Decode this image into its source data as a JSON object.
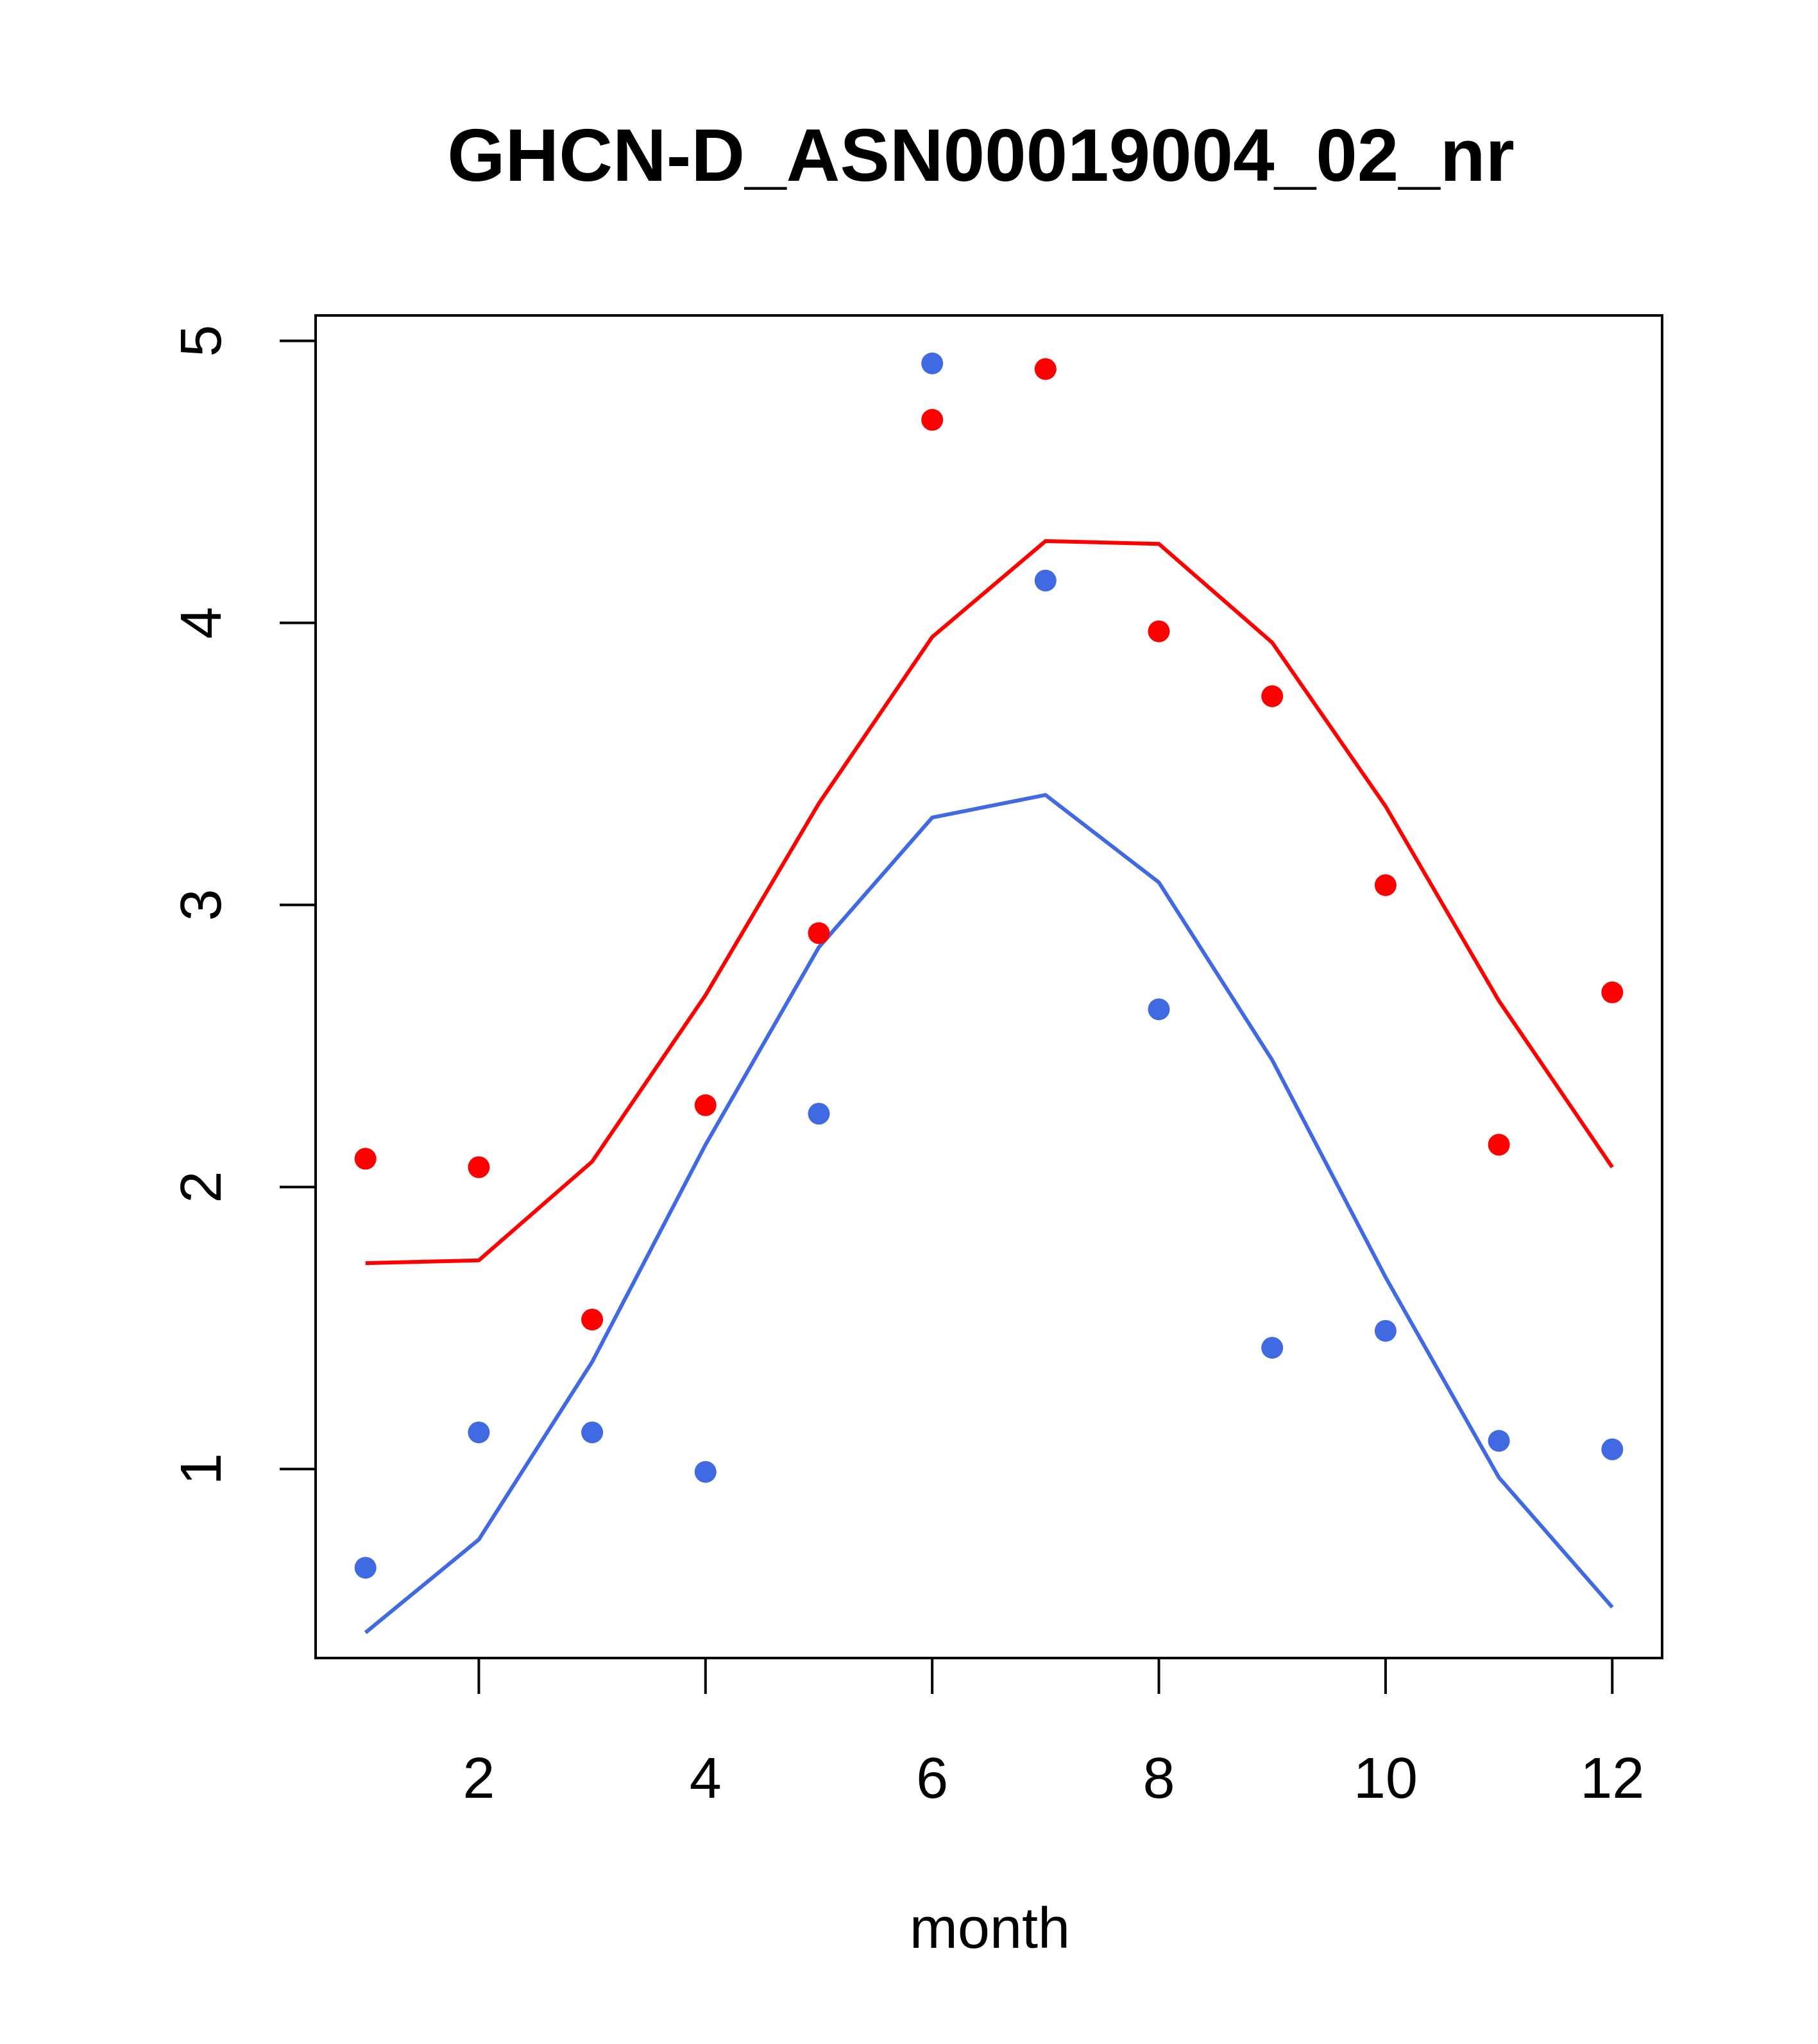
{
  "chart_data": {
    "type": "scatter",
    "title": "GHCN-D_ASN00019004_02_nr",
    "xlabel": "month",
    "ylabel": "",
    "xlim": [
      0.56,
      12.44
    ],
    "ylim": [
      0.33,
      5.09
    ],
    "x_ticks": [
      2,
      4,
      6,
      8,
      10,
      12
    ],
    "y_ticks": [
      1,
      2,
      3,
      4,
      5
    ],
    "grid": false,
    "legend": "none",
    "series": [
      {
        "kind": "points",
        "color": "#ff0000",
        "x": [
          1,
          2,
          3,
          4,
          5,
          6,
          7,
          8,
          9,
          10,
          11,
          12
        ],
        "values": [
          2.1,
          2.07,
          1.53,
          2.29,
          2.9,
          4.72,
          4.9,
          3.97,
          3.74,
          3.07,
          2.15,
          2.69
        ]
      },
      {
        "kind": "points",
        "color": "#4169e1",
        "x": [
          1,
          2,
          3,
          4,
          5,
          6,
          7,
          8,
          9,
          10,
          11,
          12
        ],
        "values": [
          0.65,
          1.13,
          1.13,
          0.99,
          2.26,
          4.92,
          4.15,
          2.63,
          1.43,
          1.49,
          1.1,
          1.07
        ]
      },
      {
        "kind": "line",
        "color": "#ff0000",
        "x": [
          1,
          2,
          3,
          4,
          5,
          6,
          7,
          8,
          9,
          10,
          11,
          12
        ],
        "values": [
          1.73,
          1.74,
          2.09,
          2.68,
          3.36,
          3.95,
          4.29,
          4.28,
          3.93,
          3.35,
          2.66,
          2.07
        ]
      },
      {
        "kind": "line",
        "color": "#4169e1",
        "x": [
          1,
          2,
          3,
          4,
          5,
          6,
          7,
          8,
          9,
          10,
          11,
          12
        ],
        "values": [
          0.42,
          0.75,
          1.38,
          2.15,
          2.85,
          3.31,
          3.39,
          3.08,
          2.45,
          1.68,
          0.97,
          0.51
        ]
      }
    ]
  }
}
